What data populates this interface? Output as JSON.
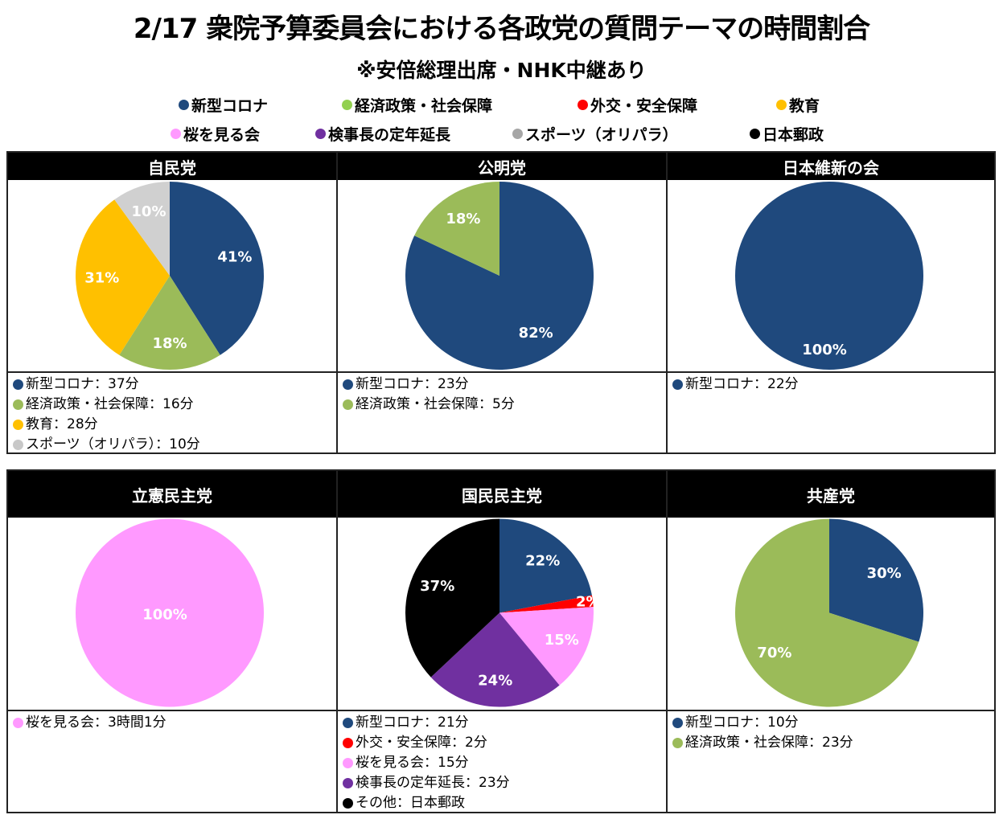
{
  "title": "2/17 衆院予算委員会における各政党の質問テーマの時間割合",
  "subtitle": "※安倍総理出席・NHK中継あり",
  "legend": [
    {
      "label": "新型コロナ",
      "color": "#1f497d"
    },
    {
      "label": "経済政策・社会保障",
      "color": "#92d050"
    },
    {
      "label": "外交・安全保障",
      "color": "#ff0000"
    },
    {
      "label": "教育",
      "color": "#ffc000"
    },
    {
      "label": "桜を見る会",
      "color": "#ff99ff"
    },
    {
      "label": "検事長の定年延長",
      "color": "#7030a0"
    },
    {
      "label": "スポーツ（オリパラ）",
      "color": "#a6a6a6"
    },
    {
      "label": "日本郵政",
      "color": "#000000"
    }
  ],
  "chart_data": [
    {
      "type": "pie",
      "title": "自民党",
      "slices": [
        {
          "category": "新型コロナ",
          "value": 41,
          "label": "41%",
          "color": "#1f497d"
        },
        {
          "category": "経済政策・社会保障",
          "value": 18,
          "label": "18%",
          "color": "#9bbb59"
        },
        {
          "category": "教育",
          "value": 31,
          "label": "31%",
          "color": "#ffc000"
        },
        {
          "category": "スポーツ（オリパラ）",
          "value": 10,
          "label": "10%",
          "color": "#d0d0d0"
        }
      ],
      "notes": [
        {
          "text": "新型コロナ：37分",
          "color": "#1f497d"
        },
        {
          "text": "経済政策・社会保障：16分",
          "color": "#9bbb59"
        },
        {
          "text": "教育：28分",
          "color": "#ffc000"
        },
        {
          "text": "スポーツ（オリパラ）：10分",
          "color": "#c8c8c8"
        }
      ]
    },
    {
      "type": "pie",
      "title": "公明党",
      "slices": [
        {
          "category": "新型コロナ",
          "value": 82,
          "label": "82%",
          "color": "#1f497d"
        },
        {
          "category": "経済政策・社会保障",
          "value": 18,
          "label": "18%",
          "color": "#9bbb59"
        }
      ],
      "notes": [
        {
          "text": "新型コロナ：23分",
          "color": "#1f497d"
        },
        {
          "text": "経済政策・社会保障：5分",
          "color": "#9bbb59"
        }
      ]
    },
    {
      "type": "pie",
      "title": "日本維新の会",
      "slices": [
        {
          "category": "新型コロナ",
          "value": 100,
          "label": "100%",
          "color": "#1f497d"
        }
      ],
      "notes": [
        {
          "text": "新型コロナ：22分",
          "color": "#1f497d"
        }
      ]
    },
    {
      "type": "pie",
      "title": "立憲民主党",
      "slices": [
        {
          "category": "桜を見る会",
          "value": 100,
          "label": "100%",
          "color": "#ff99ff"
        }
      ],
      "notes": [
        {
          "text": "桜を見る会：3時間1分",
          "color": "#ff99ff"
        }
      ]
    },
    {
      "type": "pie",
      "title": "国民民主党",
      "slices": [
        {
          "category": "新型コロナ",
          "value": 22,
          "label": "22%",
          "color": "#1f497d"
        },
        {
          "category": "外交・安全保障",
          "value": 2,
          "label": "2%",
          "color": "#ff0000"
        },
        {
          "category": "桜を見る会",
          "value": 15,
          "label": "15%",
          "color": "#ff99ff"
        },
        {
          "category": "検事長の定年延長",
          "value": 24,
          "label": "24%",
          "color": "#7030a0"
        },
        {
          "category": "その他（日本郵政）",
          "value": 37,
          "label": "37%",
          "color": "#000000"
        }
      ],
      "notes": [
        {
          "text": "新型コロナ：21分",
          "color": "#1f497d"
        },
        {
          "text": "外交・安全保障：2分",
          "color": "#ff0000"
        },
        {
          "text": "桜を見る会：15分",
          "color": "#ff99ff"
        },
        {
          "text": "検事長の定年延長：23分",
          "color": "#7030a0"
        },
        {
          "text": "その他：日本郵政",
          "color": "#000000"
        }
      ]
    },
    {
      "type": "pie",
      "title": "共産党",
      "slices": [
        {
          "category": "新型コロナ",
          "value": 30,
          "label": "30%",
          "color": "#1f497d"
        },
        {
          "category": "経済政策・社会保障",
          "value": 70,
          "label": "70%",
          "color": "#9bbb59"
        }
      ],
      "notes": [
        {
          "text": "新型コロナ：10分",
          "color": "#1f497d"
        },
        {
          "text": "経済政策・社会保障：23分",
          "color": "#9bbb59"
        }
      ]
    }
  ]
}
